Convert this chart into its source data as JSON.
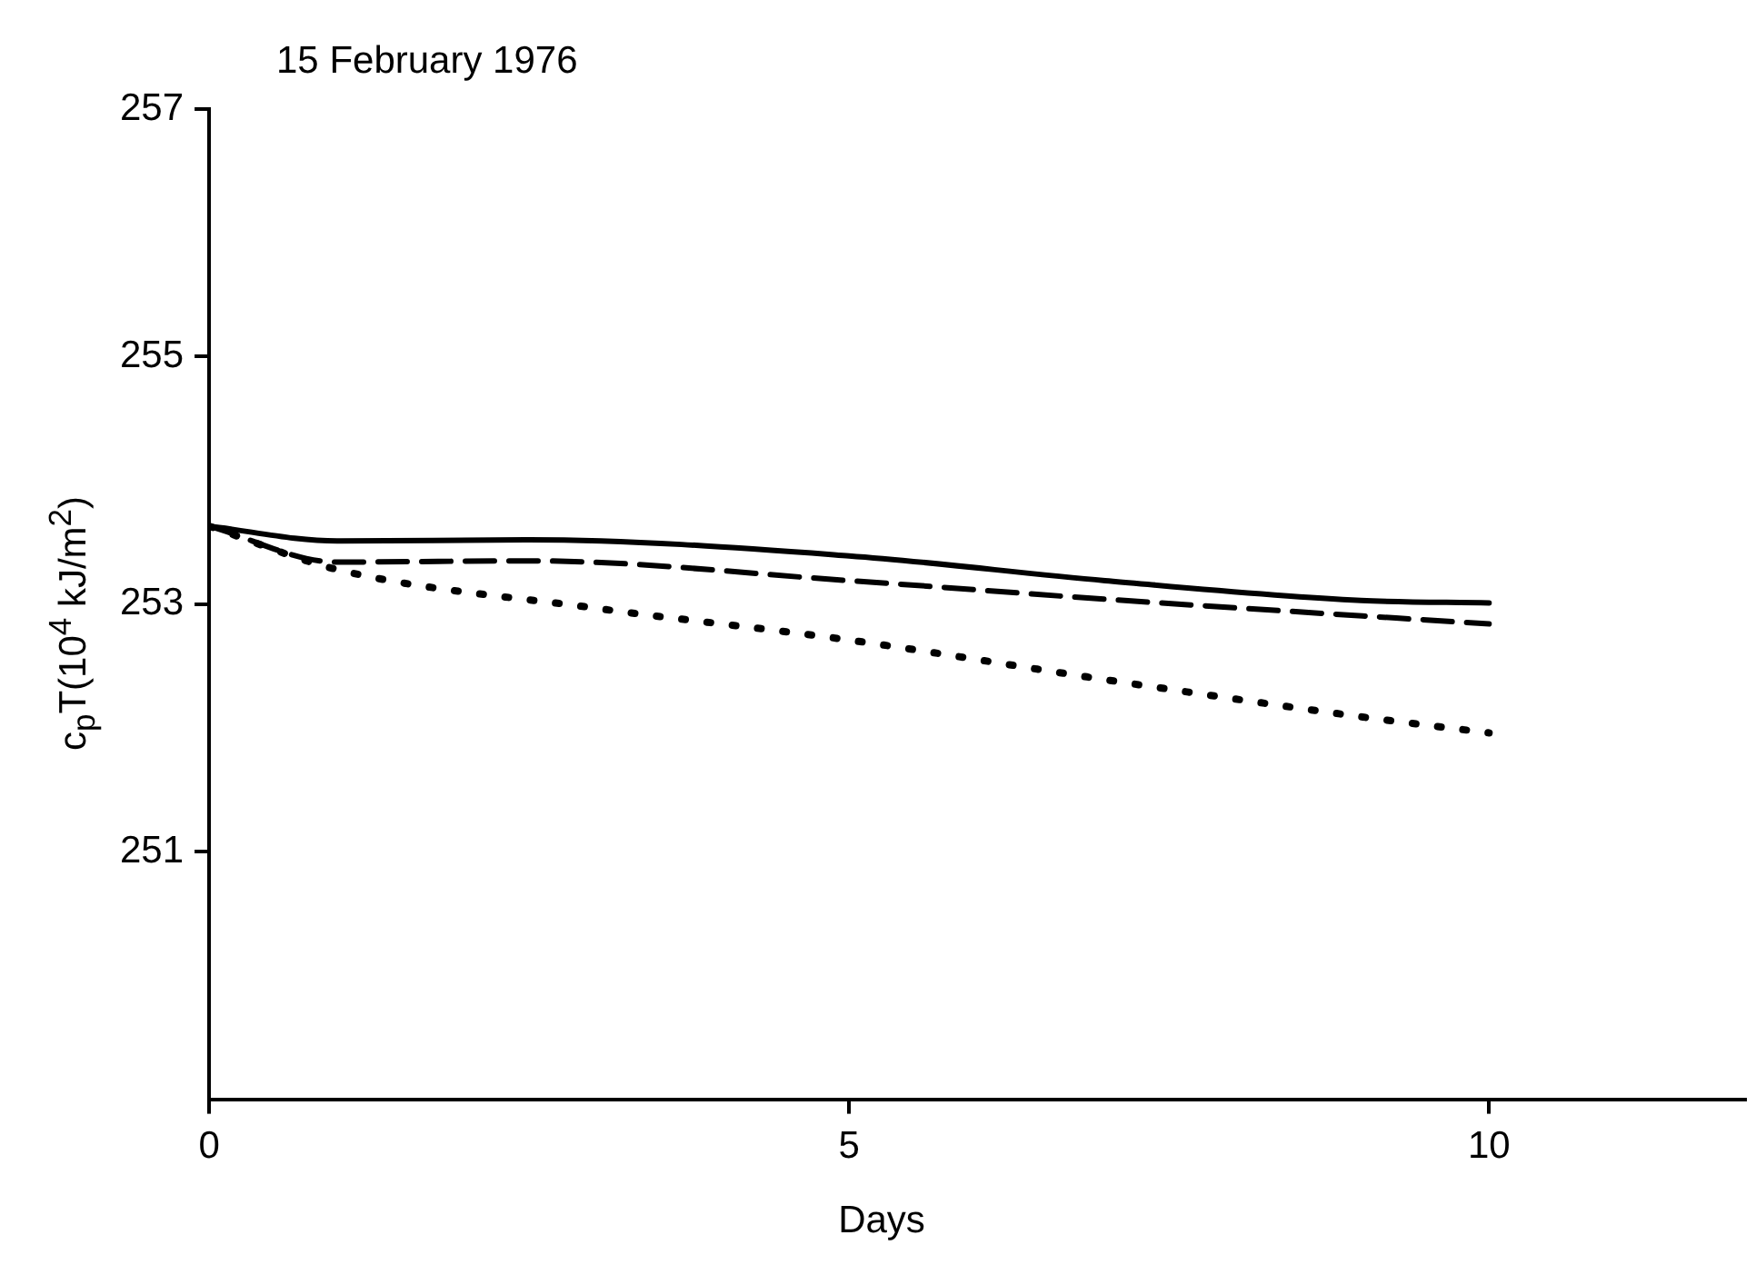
{
  "chart_data": {
    "type": "line",
    "title": "15 February 1976",
    "xlabel": "Days",
    "ylabel": "c$_{p}$T(10$^{4}$ kJ/m$^{2}$)",
    "xlim": [
      0,
      12
    ],
    "xticks": [
      0,
      5,
      10
    ],
    "ylim": [
      249,
      257
    ],
    "yticks": [
      251,
      253,
      255,
      257
    ],
    "grid": false,
    "legend": false,
    "marker": "none",
    "series": [
      {
        "color": "#000000",
        "line_style": "solid",
        "x": [
          0,
          1,
          2.5,
          5,
          7,
          9,
          10
        ],
        "values": [
          253.63,
          253.51,
          253.52,
          253.39,
          253.19,
          253.03,
          253.01
        ]
      },
      {
        "color": "#000000",
        "line_style": "dashed",
        "x": [
          0,
          1,
          2.5,
          5,
          7,
          10
        ],
        "values": [
          253.63,
          253.34,
          253.35,
          253.19,
          253.04,
          252.84
        ]
      },
      {
        "color": "#000000",
        "line_style": "dotted",
        "x": [
          0,
          1,
          3,
          5,
          7,
          9,
          10
        ],
        "values": [
          253.63,
          253.28,
          252.97,
          252.71,
          252.39,
          252.09,
          251.96
        ]
      }
    ]
  }
}
